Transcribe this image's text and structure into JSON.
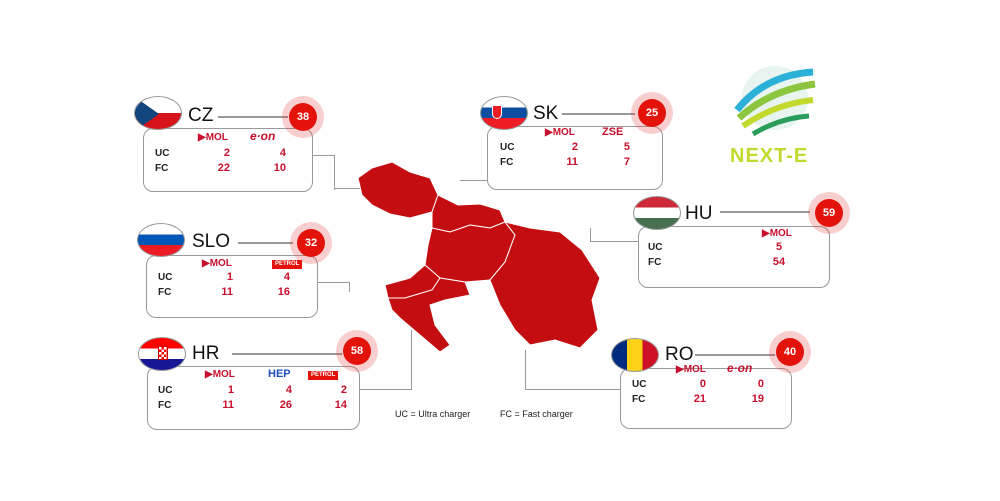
{
  "legend": {
    "uc": "UC = Ultra charger",
    "fc": "FC = Fast charger"
  },
  "logo": {
    "text": "NEXT-E",
    "color": "#c4d92e"
  },
  "row_labels": {
    "uc": "UC",
    "fc": "FC"
  },
  "accent": "#e3120b",
  "countries": {
    "cz": {
      "code": "CZ",
      "total": "38",
      "brands": [
        "MOL",
        "e·on"
      ],
      "uc": [
        "2",
        "4"
      ],
      "fc": [
        "22",
        "10"
      ]
    },
    "slo": {
      "code": "SLO",
      "total": "32",
      "brands": [
        "MOL",
        "PETROL"
      ],
      "uc": [
        "1",
        "4"
      ],
      "fc": [
        "11",
        "16"
      ]
    },
    "hr": {
      "code": "HR",
      "total": "58",
      "brands": [
        "MOL",
        "HEP",
        "PETROL"
      ],
      "uc": [
        "1",
        "4",
        "2"
      ],
      "fc": [
        "11",
        "26",
        "14"
      ]
    },
    "sk": {
      "code": "SK",
      "total": "25",
      "brands": [
        "MOL",
        "ZSE"
      ],
      "uc": [
        "2",
        "5"
      ],
      "fc": [
        "11",
        "7"
      ]
    },
    "hu": {
      "code": "HU",
      "total": "59",
      "brands": [
        "MOL"
      ],
      "uc": [
        "5"
      ],
      "fc": [
        "54"
      ]
    },
    "ro": {
      "code": "RO",
      "total": "40",
      "brands": [
        "MOL",
        "e·on"
      ],
      "uc": [
        "0",
        "0"
      ],
      "fc": [
        "21",
        "19"
      ]
    }
  }
}
